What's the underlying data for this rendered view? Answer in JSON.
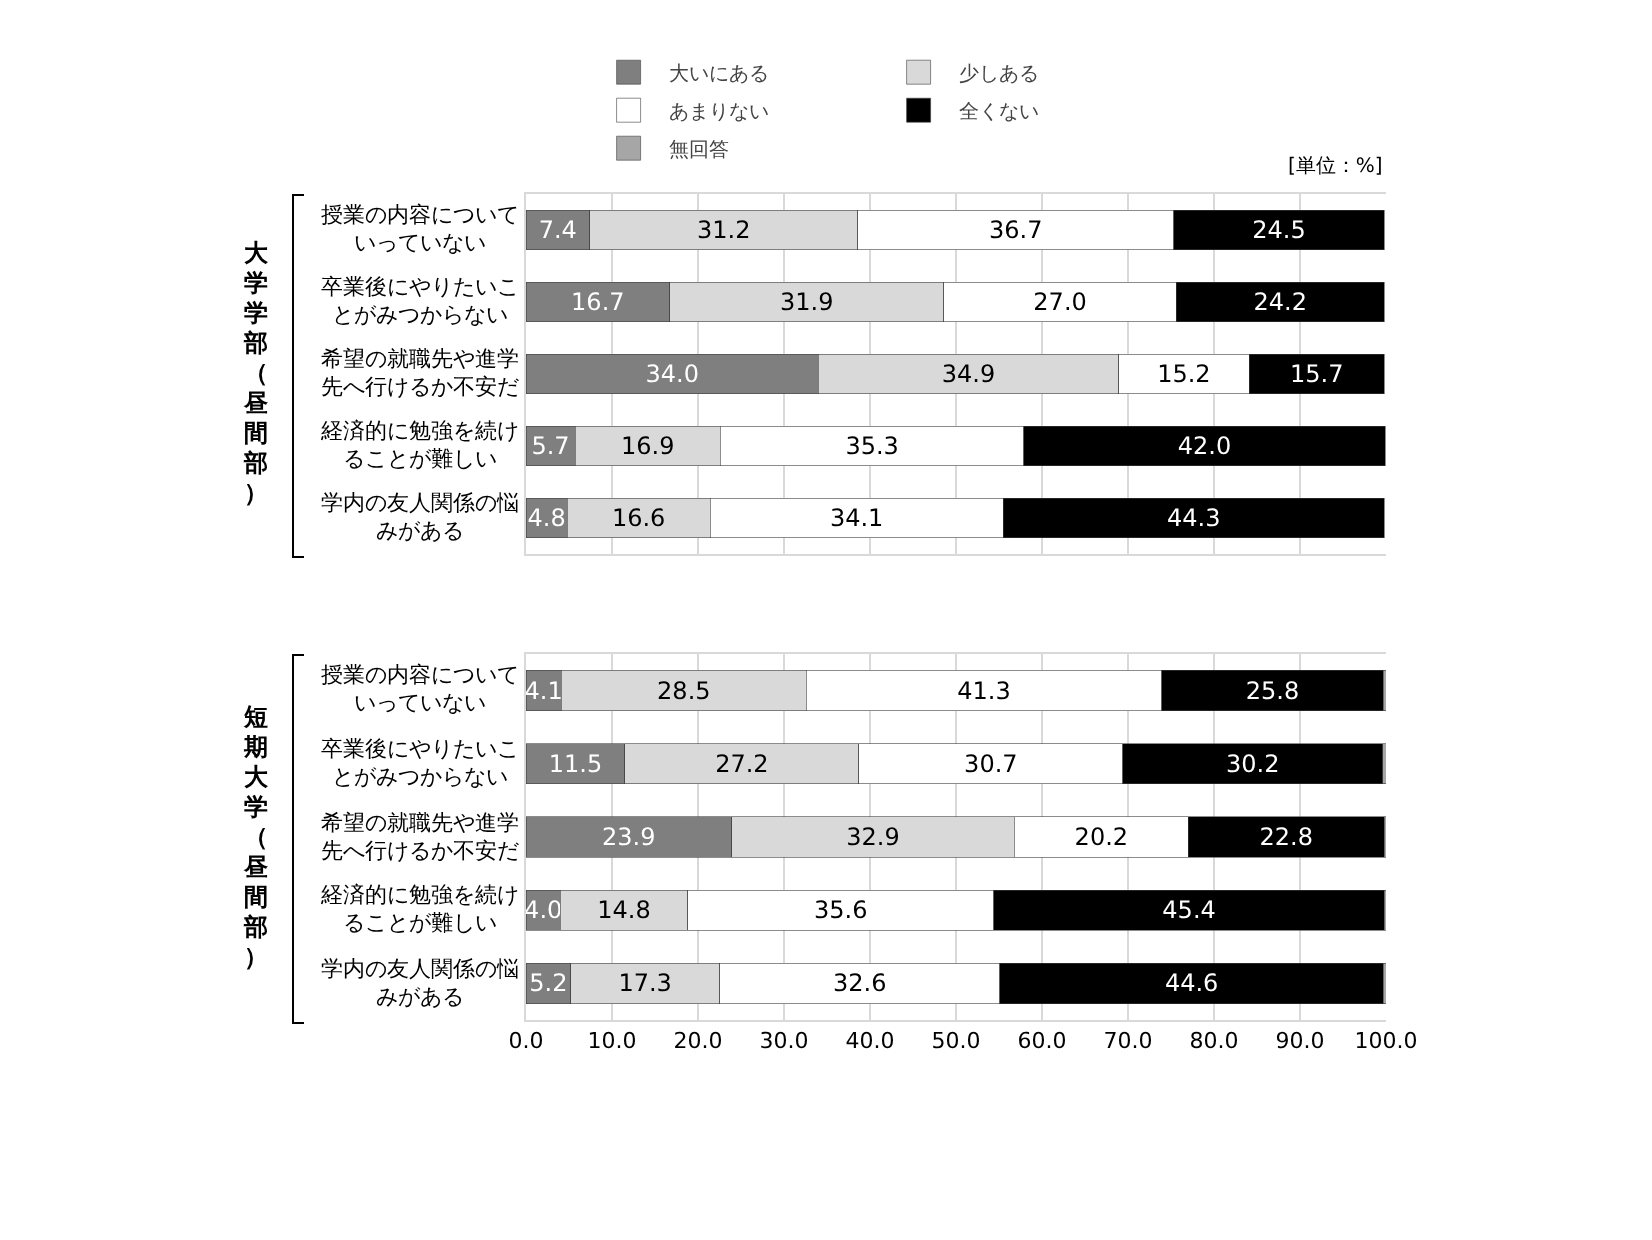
{
  "chart_data": [
    {
      "type": "bar",
      "orientation": "horizontal",
      "stacked": true,
      "title": "大学学部（昼間部）",
      "legend": "top",
      "grid": "x",
      "tick_labels": "y",
      "xlim": [
        0,
        100
      ],
      "xticks": [
        0,
        10,
        20,
        30,
        40,
        50,
        60,
        70,
        80,
        90,
        100
      ],
      "annotations": [
        "[単位：%]"
      ],
      "categories": [
        "授業の内容についていっていない",
        "卒業後にやりたいことがみつからない",
        "希望の就職先や進学先へ行けるか不安だ",
        "経済的に勉強を続けることが難しい",
        "学内の友人関係の悩みがある"
      ],
      "series": [
        {
          "name": "大いにある",
          "color": "#7f7f7f",
          "values": [
            7.4,
            16.7,
            34.0,
            5.7,
            4.8
          ],
          "value_labels": [
            "7.4",
            "16.7",
            "34.0",
            "5.7",
            "4.8"
          ]
        },
        {
          "name": "少しある",
          "color": "#d9d9d9",
          "values": [
            31.2,
            31.9,
            34.9,
            16.9,
            16.6
          ],
          "value_labels": [
            "31.2",
            "31.9",
            "34.9",
            "16.9",
            "16.6"
          ]
        },
        {
          "name": "あまりない",
          "color": "#ffffff",
          "values": [
            36.7,
            27.0,
            15.2,
            35.3,
            34.1
          ],
          "value_labels": [
            "36.7",
            "27.0",
            "15.2",
            "35.3",
            "34.1"
          ]
        },
        {
          "name": "全くない",
          "color": "#000000",
          "values": [
            24.5,
            24.2,
            15.7,
            42.0,
            44.3
          ],
          "value_labels": [
            "24.5",
            "24.2",
            "15.7",
            "42.0",
            "44.3"
          ]
        },
        {
          "name": "無回答",
          "color": "#a6a6a6",
          "values": [
            null,
            null,
            null,
            null,
            null
          ]
        }
      ]
    },
    {
      "type": "bar",
      "orientation": "horizontal",
      "stacked": true,
      "title": "短期大学（昼間部）",
      "grid": "x",
      "xlim": [
        0,
        100
      ],
      "xticks": [
        {
          "value": 0,
          "label": "0.0"
        },
        {
          "value": 10,
          "label": "10.0"
        },
        {
          "value": 20,
          "label": "20.0"
        },
        {
          "value": 30,
          "label": "30.0"
        },
        {
          "value": 40,
          "label": "40.0"
        },
        {
          "value": 50,
          "label": "50.0"
        },
        {
          "value": 60,
          "label": "60.0"
        },
        {
          "value": 70,
          "label": "70.0"
        },
        {
          "value": 80,
          "label": "80.0"
        },
        {
          "value": 90,
          "label": "90.0"
        },
        {
          "value": 100,
          "label": "100.0"
        }
      ],
      "categories": [
        "授業の内容についていっていない",
        "卒業後にやりたいことがみつからない",
        "希望の就職先や進学先へ行けるか不安だ",
        "経済的に勉強を続けることが難しい",
        "学内の友人関係の悩みがある"
      ],
      "series": [
        {
          "color": "#7f7f7f",
          "values": [
            4.1,
            11.5,
            23.9,
            4.0,
            5.2
          ],
          "value_labels": [
            "4.1",
            "11.5",
            "23.9",
            "4.0",
            "5.2"
          ]
        },
        {
          "color": "#d9d9d9",
          "values": [
            28.5,
            27.2,
            32.9,
            14.8,
            17.3
          ],
          "value_labels": [
            "28.5",
            "27.2",
            "32.9",
            "14.8",
            "17.3"
          ]
        },
        {
          "color": "#ffffff",
          "values": [
            41.3,
            30.7,
            20.2,
            35.6,
            32.6
          ],
          "value_labels": [
            "41.3",
            "30.7",
            "20.2",
            "35.6",
            "32.6"
          ]
        },
        {
          "color": "#000000",
          "values": [
            25.8,
            30.2,
            22.8,
            45.4,
            44.6
          ],
          "value_labels": [
            "25.8",
            "30.2",
            "22.8",
            "45.4",
            "44.6"
          ]
        },
        {
          "color": "#a6a6a6",
          "values": [
            0.3,
            0.4,
            0.2,
            0.2,
            0.3
          ]
        }
      ]
    }
  ]
}
